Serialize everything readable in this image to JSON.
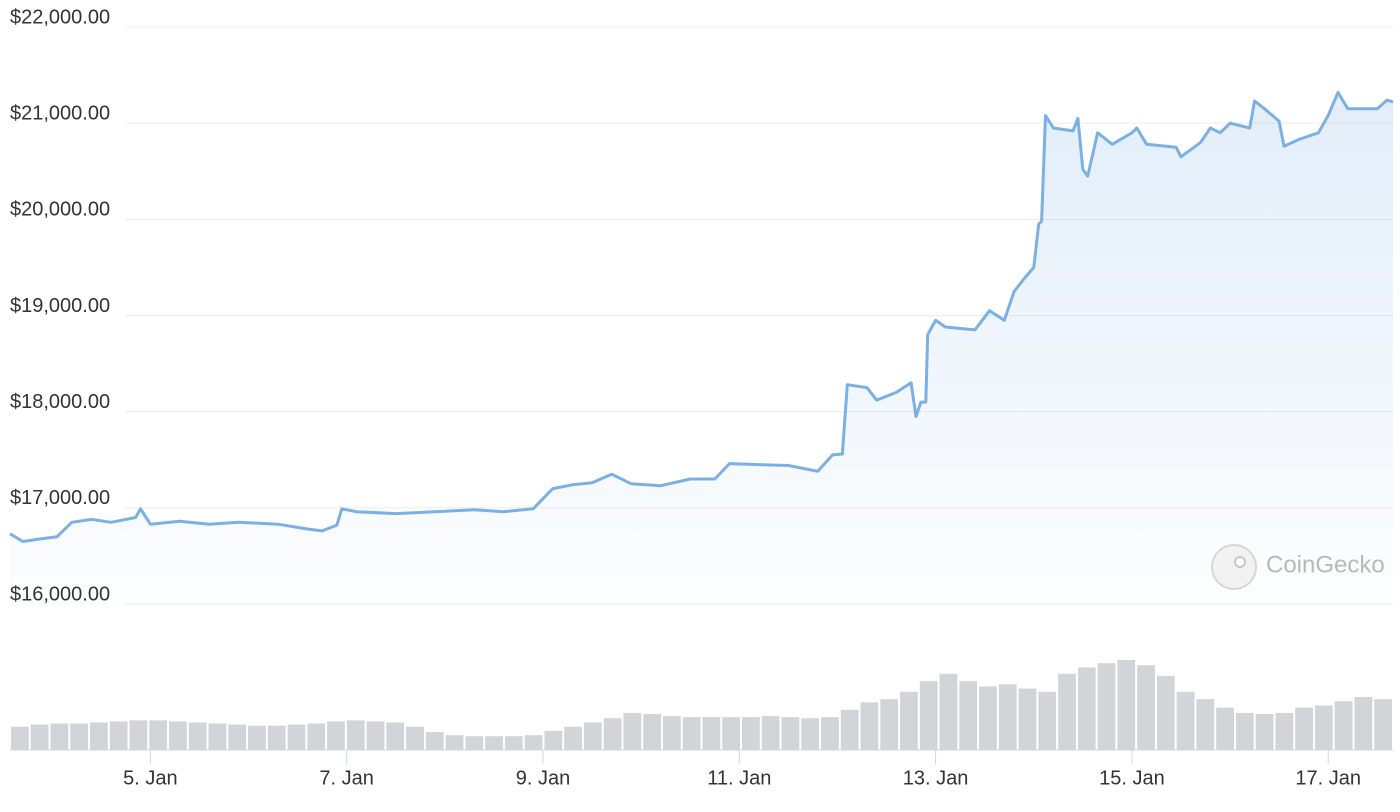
{
  "chart_data": {
    "type": "line",
    "x": [
      3.57,
      3.7,
      3.9,
      4.05,
      4.2,
      4.4,
      4.6,
      4.85,
      4.9,
      5.0,
      5.3,
      5.6,
      5.9,
      6.3,
      6.6,
      6.75,
      6.9,
      6.95,
      7.1,
      7.5,
      7.9,
      8.3,
      8.6,
      8.9,
      9.1,
      9.3,
      9.5,
      9.7,
      9.9,
      10.2,
      10.5,
      10.75,
      10.9,
      11.2,
      11.5,
      11.8,
      11.95,
      12.05,
      12.1,
      12.3,
      12.4,
      12.6,
      12.75,
      12.8,
      12.85,
      12.9,
      12.92,
      13.0,
      13.1,
      13.4,
      13.55,
      13.7,
      13.8,
      13.9,
      14.0,
      14.05,
      14.08,
      14.12,
      14.2,
      14.4,
      14.45,
      14.5,
      14.55,
      14.65,
      14.8,
      15.0,
      15.05,
      15.15,
      15.45,
      15.5,
      15.7,
      15.8,
      15.9,
      16.0,
      16.2,
      16.25,
      16.35,
      16.5,
      16.55,
      16.7,
      16.9,
      17.0,
      17.1,
      17.2,
      17.4,
      17.5,
      17.6,
      17.66
    ],
    "series": [
      {
        "color": "#7cb0e3",
        "values": [
          16730,
          16650,
          16680,
          16700,
          16850,
          16880,
          16850,
          16900,
          16990,
          16830,
          16860,
          16830,
          16850,
          16830,
          16780,
          16760,
          16820,
          16990,
          16960,
          16940,
          16960,
          16980,
          16960,
          16990,
          17200,
          17240,
          17260,
          17350,
          17250,
          17230,
          17300,
          17300,
          17460,
          17450,
          17440,
          17380,
          17550,
          17560,
          18280,
          18250,
          18120,
          18200,
          18300,
          17950,
          18100,
          18100,
          18800,
          18950,
          18880,
          18850,
          19050,
          18950,
          19250,
          19380,
          19500,
          19950,
          19980,
          21080,
          20950,
          20920,
          21050,
          20520,
          20450,
          20900,
          20780,
          20900,
          20950,
          20780,
          20750,
          20650,
          20800,
          20950,
          20900,
          21000,
          20950,
          21230,
          21150,
          21020,
          20760,
          20830,
          20900,
          21080,
          21320,
          21150,
          21150,
          21150,
          21240,
          21220
        ]
      }
    ],
    "volume": {
      "color": "#d3d4d8",
      "values": [
        22,
        24,
        25,
        25,
        26,
        27,
        28,
        28,
        27,
        26,
        25,
        24,
        23,
        23,
        24,
        25,
        27,
        28,
        27,
        26,
        22,
        17,
        14,
        13,
        13,
        13,
        14,
        18,
        22,
        26,
        30,
        35,
        34,
        32,
        31,
        31,
        31,
        31,
        32,
        31,
        30,
        31,
        38,
        45,
        48,
        55,
        65,
        72,
        65,
        60,
        62,
        58,
        55,
        72,
        78,
        82,
        85,
        80,
        70,
        55,
        48,
        40,
        35,
        34,
        35,
        40,
        42,
        46,
        50,
        48
      ]
    },
    "xlim": [
      3.57,
      17.66
    ],
    "xticks": [
      {
        "value": 5,
        "label": "5. Jan"
      },
      {
        "value": 7,
        "label": "7. Jan"
      },
      {
        "value": 9,
        "label": "9. Jan"
      },
      {
        "value": 11,
        "label": "11. Jan"
      },
      {
        "value": 13,
        "label": "13. Jan"
      },
      {
        "value": 15,
        "label": "15. Jan"
      },
      {
        "value": 17,
        "label": "17. Jan"
      }
    ],
    "ylim": [
      16000,
      22000
    ],
    "yticks": [
      {
        "value": 16000,
        "label": "$16,000.00"
      },
      {
        "value": 17000,
        "label": "$17,000.00"
      },
      {
        "value": 18000,
        "label": "$18,000.00"
      },
      {
        "value": 19000,
        "label": "$19,000.00"
      },
      {
        "value": 20000,
        "label": "$20,000.00"
      },
      {
        "value": 21000,
        "label": "$21,000.00"
      },
      {
        "value": 22000,
        "label": "$22,000.00"
      }
    ],
    "grid": true,
    "watermark": "CoinGecko"
  }
}
